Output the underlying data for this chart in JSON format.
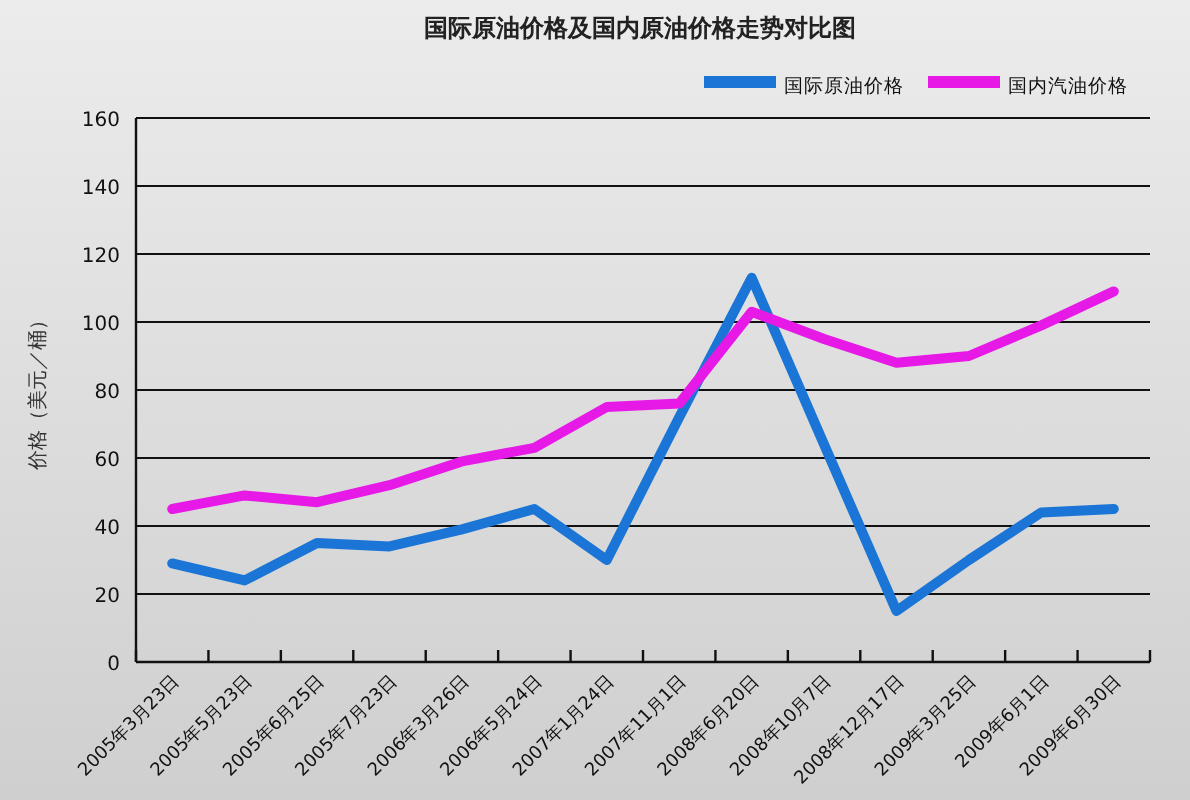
{
  "chart_data": {
    "type": "line",
    "title": "国际原油价格及国内原油价格走势对比图",
    "ylabel": "价格（美元／桶）",
    "categories": [
      "2005年3月23日",
      "2005年5月23日",
      "2005年6月25日",
      "2005年7月23日",
      "2006年3月26日",
      "2006年5月24日",
      "2007年1月24日",
      "2007年11月1日",
      "2008年6月20日",
      "2008年10月7日",
      "2008年12月17日",
      "2009年3月25日",
      "2009年6月1日",
      "2009年6月30日"
    ],
    "series": [
      {
        "name": "国际原油价格",
        "color": "#1a75d6",
        "values": [
          29,
          24,
          35,
          34,
          39,
          45,
          30,
          72,
          113,
          64,
          15,
          30,
          44,
          45
        ]
      },
      {
        "name": "国内汽油价格",
        "color": "#e619e6",
        "values": [
          45,
          49,
          47,
          52,
          59,
          63,
          75,
          76,
          103,
          95,
          88,
          90,
          99,
          109
        ]
      }
    ],
    "ylim": [
      0,
      160
    ],
    "yticks": [
      0,
      20,
      40,
      60,
      80,
      100,
      120,
      140,
      160
    ],
    "grid": "y",
    "legend": "top right",
    "marker": "none",
    "line_style": "solid"
  }
}
